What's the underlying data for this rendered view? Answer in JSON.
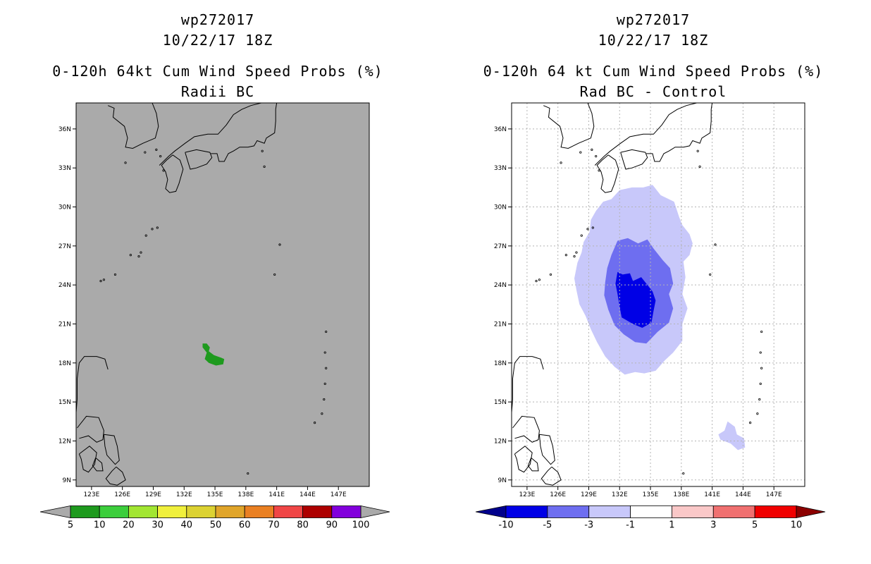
{
  "chart_data": [
    {
      "type": "map",
      "title": "wp272017",
      "subtitle": "10/22/17 18Z",
      "heading": "0-120h 64kt Cum Wind Speed Probs (%)",
      "subheading": "Radii BC",
      "xlim": [
        121.5,
        150
      ],
      "ylim": [
        8.5,
        38
      ],
      "x_ticks": [
        {
          "v": 123,
          "label": "123E"
        },
        {
          "v": 126,
          "label": "126E"
        },
        {
          "v": 129,
          "label": "129E"
        },
        {
          "v": 132,
          "label": "132E"
        },
        {
          "v": 135,
          "label": "135E"
        },
        {
          "v": 138,
          "label": "138E"
        },
        {
          "v": 141,
          "label": "141E"
        },
        {
          "v": 144,
          "label": "144E"
        },
        {
          "v": 147,
          "label": "147E"
        }
      ],
      "y_ticks": [
        {
          "v": 9,
          "label": "9N"
        },
        {
          "v": 12,
          "label": "12N"
        },
        {
          "v": 15,
          "label": "15N"
        },
        {
          "v": 18,
          "label": "18N"
        },
        {
          "v": 21,
          "label": "21N"
        },
        {
          "v": 24,
          "label": "24N"
        },
        {
          "v": 27,
          "label": "27N"
        },
        {
          "v": 30,
          "label": "30N"
        },
        {
          "v": 33,
          "label": "33N"
        },
        {
          "v": 36,
          "label": "36N"
        }
      ],
      "grid": false,
      "background": "#aaaaaa",
      "regions": [
        {
          "name": "prob-5-10",
          "color": "#1e9a1e",
          "points": [
            [
              133.8,
              19.5
            ],
            [
              134.2,
              19.5
            ],
            [
              134.5,
              19.2
            ],
            [
              134.4,
              18.9
            ],
            [
              134.9,
              18.6
            ],
            [
              135.6,
              18.4
            ],
            [
              135.9,
              18.3
            ],
            [
              135.8,
              17.9
            ],
            [
              135.1,
              17.8
            ],
            [
              134.4,
              18.0
            ],
            [
              134.0,
              18.3
            ],
            [
              134.2,
              18.8
            ],
            [
              133.8,
              19.2
            ]
          ]
        }
      ],
      "colorbar": {
        "labels": [
          "5",
          "10",
          "20",
          "30",
          "40",
          "50",
          "60",
          "70",
          "80",
          "90",
          "100"
        ],
        "colors": [
          "#1e9a1e",
          "#3cce3c",
          "#a2e632",
          "#f0f03c",
          "#dcd232",
          "#e0a52a",
          "#ea8022",
          "#f04646",
          "#ad0000",
          "#8200dc"
        ],
        "end_colors": [
          "#aaaaaa",
          "#aaaaaa"
        ]
      }
    },
    {
      "type": "map",
      "title": "wp272017",
      "subtitle": "10/22/17 18Z",
      "heading": "0-120h 64 kt Cum Wind Speed Probs (%)",
      "subheading": "Rad BC - Control",
      "xlim": [
        121.5,
        150
      ],
      "ylim": [
        8.5,
        38
      ],
      "x_ticks": [
        {
          "v": 123,
          "label": "123E"
        },
        {
          "v": 126,
          "label": "126E"
        },
        {
          "v": 129,
          "label": "129E"
        },
        {
          "v": 132,
          "label": "132E"
        },
        {
          "v": 135,
          "label": "135E"
        },
        {
          "v": 138,
          "label": "138E"
        },
        {
          "v": 141,
          "label": "141E"
        },
        {
          "v": 144,
          "label": "144E"
        },
        {
          "v": 147,
          "label": "147E"
        }
      ],
      "y_ticks": [
        {
          "v": 9,
          "label": "9N"
        },
        {
          "v": 12,
          "label": "12N"
        },
        {
          "v": 15,
          "label": "15N"
        },
        {
          "v": 18,
          "label": "18N"
        },
        {
          "v": 21,
          "label": "21N"
        },
        {
          "v": 24,
          "label": "24N"
        },
        {
          "v": 27,
          "label": "27N"
        },
        {
          "v": 30,
          "label": "30N"
        },
        {
          "v": 33,
          "label": "33N"
        },
        {
          "v": 36,
          "label": "36N"
        }
      ],
      "grid": true,
      "background": "#ffffff",
      "regions": [
        {
          "name": "diff-minus3-minus1",
          "color": "#c8c8fa",
          "points": [
            [
              134.3,
              31.5
            ],
            [
              135.2,
              31.7
            ],
            [
              136.0,
              30.9
            ],
            [
              137.3,
              30.4
            ],
            [
              137.8,
              29.2
            ],
            [
              138.1,
              28.6
            ],
            [
              138.8,
              27.9
            ],
            [
              139.1,
              27.2
            ],
            [
              138.8,
              26.3
            ],
            [
              138.2,
              25.8
            ],
            [
              138.4,
              24.6
            ],
            [
              138.1,
              23.3
            ],
            [
              138.6,
              22.2
            ],
            [
              138.1,
              21.0
            ],
            [
              138.1,
              19.7
            ],
            [
              137.2,
              18.8
            ],
            [
              136.4,
              18.2
            ],
            [
              135.5,
              17.4
            ],
            [
              134.4,
              17.2
            ],
            [
              133.5,
              17.3
            ],
            [
              132.5,
              17.1
            ],
            [
              131.5,
              17.7
            ],
            [
              130.6,
              18.5
            ],
            [
              129.8,
              19.6
            ],
            [
              129.2,
              20.6
            ],
            [
              128.7,
              21.6
            ],
            [
              128.1,
              22.5
            ],
            [
              127.8,
              23.6
            ],
            [
              127.6,
              24.5
            ],
            [
              127.9,
              25.7
            ],
            [
              128.3,
              26.5
            ],
            [
              128.5,
              27.3
            ],
            [
              129.1,
              28.1
            ],
            [
              129.2,
              29.0
            ],
            [
              129.7,
              29.7
            ],
            [
              130.4,
              30.4
            ],
            [
              131.2,
              30.6
            ],
            [
              132.0,
              31.3
            ],
            [
              133.2,
              31.5
            ]
          ]
        },
        {
          "name": "diff-minus5-minus3",
          "color": "#6e6ef0",
          "points": [
            [
              131.8,
              27.4
            ],
            [
              132.8,
              27.6
            ],
            [
              133.8,
              27.2
            ],
            [
              134.7,
              27.5
            ],
            [
              135.3,
              26.8
            ],
            [
              136.2,
              25.9
            ],
            [
              136.9,
              25.3
            ],
            [
              137.2,
              24.1
            ],
            [
              136.8,
              23.3
            ],
            [
              137.2,
              22.2
            ],
            [
              136.8,
              21.1
            ],
            [
              135.7,
              20.4
            ],
            [
              134.6,
              19.5
            ],
            [
              133.5,
              19.6
            ],
            [
              132.4,
              20.2
            ],
            [
              131.5,
              20.9
            ],
            [
              130.9,
              22.1
            ],
            [
              130.5,
              23.2
            ],
            [
              130.6,
              24.2
            ],
            [
              130.8,
              25.3
            ],
            [
              131.2,
              26.3
            ]
          ]
        },
        {
          "name": "diff-minus10-minus5",
          "color": "#0000e6",
          "points": [
            [
              131.8,
              25.0
            ],
            [
              132.3,
              24.8
            ],
            [
              133.0,
              24.9
            ],
            [
              133.3,
              24.3
            ],
            [
              134.1,
              24.6
            ],
            [
              134.6,
              24.1
            ],
            [
              135.2,
              23.5
            ],
            [
              135.5,
              22.8
            ],
            [
              135.3,
              22.0
            ],
            [
              135.1,
              21.1
            ],
            [
              134.2,
              20.7
            ],
            [
              133.3,
              21.0
            ],
            [
              132.2,
              21.5
            ],
            [
              132.0,
              22.3
            ],
            [
              131.8,
              23.3
            ],
            [
              131.6,
              24.1
            ]
          ]
        },
        {
          "name": "diff-minus3-minus1-south",
          "color": "#c8c8fa",
          "points": [
            [
              142.5,
              13.5
            ],
            [
              143.2,
              13.1
            ],
            [
              143.4,
              12.5
            ],
            [
              144.1,
              12.2
            ],
            [
              144.2,
              11.5
            ],
            [
              143.5,
              11.3
            ],
            [
              142.8,
              11.8
            ],
            [
              141.8,
              12.1
            ],
            [
              141.6,
              12.5
            ],
            [
              142.2,
              12.8
            ]
          ]
        }
      ],
      "colorbar": {
        "labels": [
          "-10",
          "-5",
          "-3",
          "-1",
          "1",
          "3",
          "5",
          "10"
        ],
        "colors": [
          "#0000e6",
          "#6e6ef0",
          "#c8c8fa",
          "#ffffff",
          "#fac8c8",
          "#f07070",
          "#f00000"
        ],
        "end_colors": [
          "#00008c",
          "#8c0000"
        ]
      }
    }
  ]
}
